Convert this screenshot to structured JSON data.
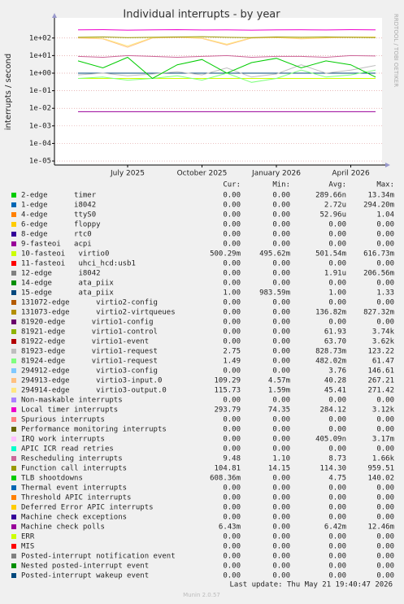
{
  "chart_data": {
    "type": "line",
    "title": "Individual interrupts - by year",
    "y_label": "interrupts / second",
    "side_text": "RRDTOOL / TOBI OETIKER",
    "log": true,
    "grid": true,
    "categories": [
      null,
      null,
      "July 2025",
      null,
      null,
      "October 2025",
      null,
      null,
      "January 2026",
      null,
      null,
      "April 2026",
      null
    ],
    "ylim": [
      5.9e-06,
      1400
    ],
    "yticks": [
      {
        "value": 1e-05,
        "label": "1e-05"
      },
      {
        "value": 0.0001,
        "label": "1e-04"
      },
      {
        "value": 0.001,
        "label": "1e-03"
      },
      {
        "value": 0.01,
        "label": "1e-02"
      },
      {
        "value": 0.1,
        "label": "1e-01"
      },
      {
        "value": 1,
        "label": "1e+00"
      },
      {
        "value": 10,
        "label": "1e+01"
      },
      {
        "value": 100,
        "label": "1e+02"
      }
    ],
    "legend_headers": [
      "Cur:",
      "Min:",
      "Avg:",
      "Max:"
    ],
    "series": [
      {
        "name": "2-edge      timer",
        "color": "#00CC00",
        "cur": "0.00",
        "min": "0.00",
        "avg": "289.66n",
        "max": "13.34m",
        "values": [
          null,
          null,
          null,
          null,
          null,
          null,
          null,
          null,
          null,
          null,
          null,
          null,
          null
        ]
      },
      {
        "name": "1-edge      i8042",
        "color": "#0066B3",
        "cur": "0.00",
        "min": "0.00",
        "avg": "2.72u",
        "max": "294.20m",
        "values": [
          null,
          null,
          null,
          null,
          null,
          null,
          null,
          null,
          null,
          null,
          null,
          null,
          null
        ]
      },
      {
        "name": "4-edge      ttyS0",
        "color": "#FF8000",
        "cur": "0.00",
        "min": "0.00",
        "avg": "52.96u",
        "max": "1.04",
        "values": [
          null,
          null,
          null,
          null,
          null,
          null,
          null,
          null,
          null,
          null,
          null,
          null,
          null
        ]
      },
      {
        "name": "6-edge      floppy",
        "color": "#FFCC00",
        "cur": "0.00",
        "min": "0.00",
        "avg": "0.00",
        "max": "0.00",
        "values": [
          null,
          null,
          null,
          null,
          null,
          null,
          null,
          null,
          null,
          null,
          null,
          null,
          null
        ]
      },
      {
        "name": "8-edge      rtc0",
        "color": "#330099",
        "cur": "0.00",
        "min": "0.00",
        "avg": "0.00",
        "max": "0.00",
        "values": [
          null,
          null,
          null,
          null,
          null,
          null,
          null,
          null,
          null,
          null,
          null,
          null,
          null
        ]
      },
      {
        "name": "9-fasteoi   acpi",
        "color": "#990099",
        "cur": "0.00",
        "min": "0.00",
        "avg": "0.00",
        "max": "0.00",
        "values": [
          null,
          null,
          null,
          null,
          null,
          null,
          null,
          null,
          null,
          null,
          null,
          null,
          null
        ]
      },
      {
        "name": "10-fasteoi   virtio0",
        "color": "#CCFF00",
        "cur": "500.29m",
        "min": "495.62m",
        "avg": "501.54m",
        "max": "616.73m",
        "values": [
          0.5,
          0.5,
          0.5,
          0.5,
          0.5,
          0.5,
          0.5,
          0.5,
          0.5,
          0.5,
          0.5,
          0.5,
          0.5
        ]
      },
      {
        "name": "11-fasteoi   uhci_hcd:usb1",
        "color": "#FF0000",
        "cur": "0.00",
        "min": "0.00",
        "avg": "0.00",
        "max": "0.00",
        "values": [
          null,
          null,
          null,
          null,
          null,
          null,
          null,
          null,
          null,
          null,
          null,
          null,
          null
        ]
      },
      {
        "name": "12-edge      i8042",
        "color": "#808080",
        "cur": "0.00",
        "min": "0.00",
        "avg": "1.91u",
        "max": "206.56m",
        "values": [
          null,
          null,
          null,
          null,
          null,
          null,
          null,
          null,
          null,
          null,
          null,
          null,
          null
        ]
      },
      {
        "name": "14-edge      ata_piix",
        "color": "#008F00",
        "cur": "0.00",
        "min": "0.00",
        "avg": "0.00",
        "max": "0.00",
        "values": [
          null,
          null,
          null,
          null,
          null,
          null,
          null,
          null,
          null,
          null,
          null,
          null,
          null
        ]
      },
      {
        "name": "15-edge      ata_piix",
        "color": "#00487D",
        "cur": "1.00",
        "min": "983.59m",
        "avg": "1.00",
        "max": "1.33",
        "values": [
          1,
          1,
          1,
          1,
          1,
          1,
          1,
          1,
          1,
          1,
          1,
          1,
          1
        ]
      },
      {
        "name": "131072-edge      virtio2-config",
        "color": "#B35A00",
        "cur": "0.00",
        "min": "0.00",
        "avg": "0.00",
        "max": "0.00",
        "values": [
          null,
          null,
          null,
          null,
          null,
          null,
          null,
          null,
          null,
          null,
          null,
          null,
          null
        ]
      },
      {
        "name": "131073-edge      virtio2-virtqueues",
        "color": "#B38F00",
        "cur": "0.00",
        "min": "0.00",
        "avg": "136.82m",
        "max": "827.32m",
        "values": [
          null,
          0.8,
          null,
          null,
          null,
          0.5,
          null,
          null,
          null,
          null,
          0.3,
          null,
          null
        ]
      },
      {
        "name": "81920-edge      virtio1-config",
        "color": "#6B006B",
        "cur": "0.00",
        "min": "0.00",
        "avg": "0.00",
        "max": "0.00",
        "values": [
          null,
          null,
          null,
          null,
          null,
          null,
          null,
          null,
          null,
          null,
          null,
          null,
          null
        ]
      },
      {
        "name": "81921-edge      virtio1-control",
        "color": "#8FB300",
        "cur": "0.00",
        "min": "0.00",
        "avg": "61.93",
        "max": "3.74k",
        "values": [
          null,
          null,
          null,
          null,
          null,
          null,
          null,
          null,
          null,
          null,
          null,
          null,
          null
        ]
      },
      {
        "name": "81922-edge      virtio1-event",
        "color": "#B30000",
        "cur": "0.00",
        "min": "0.00",
        "avg": "63.70",
        "max": "3.62k",
        "values": [
          null,
          null,
          null,
          null,
          null,
          null,
          null,
          null,
          null,
          null,
          null,
          null,
          null
        ]
      },
      {
        "name": "81923-edge      virtio1-request",
        "color": "#BEBEBE",
        "cur": "2.75",
        "min": "0.00",
        "avg": "828.73m",
        "max": "123.22",
        "values": [
          0.8,
          1,
          0.7,
          0.9,
          1.2,
          0.8,
          2,
          0.6,
          0.9,
          3,
          1,
          1.5,
          2.75
        ]
      },
      {
        "name": "81924-edge      virtio1-request",
        "color": "#80FF80",
        "cur": "1.49",
        "min": "0.00",
        "avg": "482.02m",
        "max": "61.47",
        "values": [
          0.5,
          0.6,
          0.4,
          0.5,
          0.7,
          0.4,
          1,
          0.3,
          0.5,
          1.5,
          0.6,
          0.8,
          1.49
        ]
      },
      {
        "name": "294912-edge      virtio3-config",
        "color": "#80C9FF",
        "cur": "0.00",
        "min": "0.00",
        "avg": "3.76",
        "max": "146.61",
        "values": [
          null,
          null,
          null,
          null,
          null,
          null,
          null,
          null,
          null,
          null,
          null,
          null,
          null
        ]
      },
      {
        "name": "294913-edge      virtio3-input.0",
        "color": "#FFC080",
        "cur": "109.29",
        "min": "4.57m",
        "avg": "40.28",
        "max": "267.21",
        "values": [
          100,
          90,
          30,
          100,
          110,
          95,
          40,
          100,
          105,
          90,
          100,
          110,
          109.29
        ]
      },
      {
        "name": "294914-edge      virtio3-output.0",
        "color": "#FFE680",
        "cur": "115.73",
        "min": "1.59m",
        "avg": "45.41",
        "max": "271.42",
        "values": [
          110,
          95,
          35,
          105,
          115,
          100,
          45,
          105,
          110,
          95,
          105,
          115,
          115.73
        ]
      },
      {
        "name": "Non-maskable interrupts",
        "color": "#AA80FF",
        "cur": "0.00",
        "min": "0.00",
        "avg": "0.00",
        "max": "0.00",
        "values": [
          null,
          null,
          null,
          null,
          null,
          null,
          null,
          null,
          null,
          null,
          null,
          null,
          null
        ]
      },
      {
        "name": "Local timer interrupts",
        "color": "#EE00CC",
        "cur": "293.79",
        "min": "74.35",
        "avg": "284.12",
        "max": "3.12k",
        "values": [
          290,
          300,
          280,
          290,
          300,
          285,
          290,
          280,
          290,
          295,
          285,
          300,
          293.79
        ]
      },
      {
        "name": "Spurious interrupts",
        "color": "#FF8080",
        "cur": "0.00",
        "min": "0.00",
        "avg": "0.00",
        "max": "0.00",
        "values": [
          null,
          null,
          null,
          null,
          null,
          null,
          null,
          null,
          null,
          null,
          null,
          null,
          null
        ]
      },
      {
        "name": "Performance monitoring interrupts",
        "color": "#666600",
        "cur": "0.00",
        "min": "0.00",
        "avg": "0.00",
        "max": "0.00",
        "values": [
          null,
          null,
          null,
          null,
          null,
          null,
          null,
          null,
          null,
          null,
          null,
          null,
          null
        ]
      },
      {
        "name": "IRQ work interrupts",
        "color": "#FFBFFF",
        "cur": "0.00",
        "min": "0.00",
        "avg": "405.09n",
        "max": "3.17m",
        "values": [
          null,
          null,
          null,
          null,
          null,
          null,
          null,
          null,
          null,
          null,
          null,
          null,
          null
        ]
      },
      {
        "name": "APIC ICR read retries",
        "color": "#00FFCC",
        "cur": "0.00",
        "min": "0.00",
        "avg": "0.00",
        "max": "0.00",
        "values": [
          null,
          null,
          null,
          null,
          null,
          null,
          null,
          null,
          null,
          null,
          null,
          null,
          null
        ]
      },
      {
        "name": "Rescheduling interrupts",
        "color": "#CC6699",
        "cur": "9.48",
        "min": "1.10",
        "avg": "8.73",
        "max": "1.66k",
        "values": [
          9,
          8,
          10,
          9,
          8,
          9,
          10,
          8,
          9,
          9,
          8,
          10,
          9.48
        ]
      },
      {
        "name": "Function call interrupts",
        "color": "#999900",
        "cur": "104.81",
        "min": "14.15",
        "avg": "114.30",
        "max": "959.51",
        "values": [
          110,
          115,
          105,
          110,
          115,
          120,
          110,
          105,
          115,
          110,
          115,
          110,
          104.81
        ]
      },
      {
        "name": "TLB shootdowns",
        "color": "#00CC00",
        "cur": "608.36m",
        "min": "0.00",
        "avg": "4.75",
        "max": "140.02",
        "values": [
          5,
          2,
          8,
          0.5,
          3,
          6,
          1,
          4,
          7,
          2,
          5,
          3,
          0.6
        ]
      },
      {
        "name": "Thermal event interrupts",
        "color": "#0066B3",
        "cur": "0.00",
        "min": "0.00",
        "avg": "0.00",
        "max": "0.00",
        "values": [
          null,
          null,
          null,
          null,
          null,
          null,
          null,
          null,
          null,
          null,
          null,
          null,
          null
        ]
      },
      {
        "name": "Threshold APIC interrupts",
        "color": "#FF8000",
        "cur": "0.00",
        "min": "0.00",
        "avg": "0.00",
        "max": "0.00",
        "values": [
          null,
          null,
          null,
          null,
          null,
          null,
          null,
          null,
          null,
          null,
          null,
          null,
          null
        ]
      },
      {
        "name": "Deferred Error APIC interrupts",
        "color": "#FFCC00",
        "cur": "0.00",
        "min": "0.00",
        "avg": "0.00",
        "max": "0.00",
        "values": [
          null,
          null,
          null,
          null,
          null,
          null,
          null,
          null,
          null,
          null,
          null,
          null,
          null
        ]
      },
      {
        "name": "Machine check exceptions",
        "color": "#330099",
        "cur": "0.00",
        "min": "0.00",
        "avg": "0.00",
        "max": "0.00",
        "values": [
          null,
          null,
          null,
          null,
          null,
          null,
          null,
          null,
          null,
          null,
          null,
          null,
          null
        ]
      },
      {
        "name": "Machine check polls",
        "color": "#990099",
        "cur": "6.43m",
        "min": "0.00",
        "avg": "6.42m",
        "max": "12.46m",
        "values": [
          0.0064,
          0.0064,
          0.0064,
          0.0064,
          0.0064,
          0.0064,
          0.0064,
          0.0064,
          0.0064,
          0.0064,
          0.0064,
          0.0064,
          0.0064
        ]
      },
      {
        "name": "ERR",
        "color": "#CCFF00",
        "cur": "0.00",
        "min": "0.00",
        "avg": "0.00",
        "max": "0.00",
        "values": [
          null,
          null,
          null,
          null,
          null,
          null,
          null,
          null,
          null,
          null,
          null,
          null,
          null
        ]
      },
      {
        "name": "MIS",
        "color": "#FF0000",
        "cur": "0.00",
        "min": "0.00",
        "avg": "0.00",
        "max": "0.00",
        "values": [
          null,
          null,
          null,
          null,
          null,
          null,
          null,
          null,
          null,
          null,
          null,
          null,
          null
        ]
      },
      {
        "name": "Posted-interrupt notification event",
        "color": "#808080",
        "cur": "0.00",
        "min": "0.00",
        "avg": "0.00",
        "max": "0.00",
        "values": [
          null,
          null,
          null,
          null,
          null,
          null,
          null,
          null,
          null,
          null,
          null,
          null,
          null
        ]
      },
      {
        "name": "Nested posted-interrupt event",
        "color": "#008F00",
        "cur": "0.00",
        "min": "0.00",
        "avg": "0.00",
        "max": "0.00",
        "values": [
          null,
          null,
          null,
          null,
          null,
          null,
          null,
          null,
          null,
          null,
          null,
          null,
          null
        ]
      },
      {
        "name": "Posted-interrupt wakeup event",
        "color": "#00487D",
        "cur": "0.00",
        "min": "0.00",
        "avg": "0.00",
        "max": "0.00",
        "values": [
          null,
          null,
          null,
          null,
          null,
          null,
          null,
          null,
          null,
          null,
          null,
          null,
          null
        ]
      }
    ],
    "last_update": "Last update: Thu May 21 19:40:47 2026",
    "footer": "Munin 2.0.57"
  }
}
